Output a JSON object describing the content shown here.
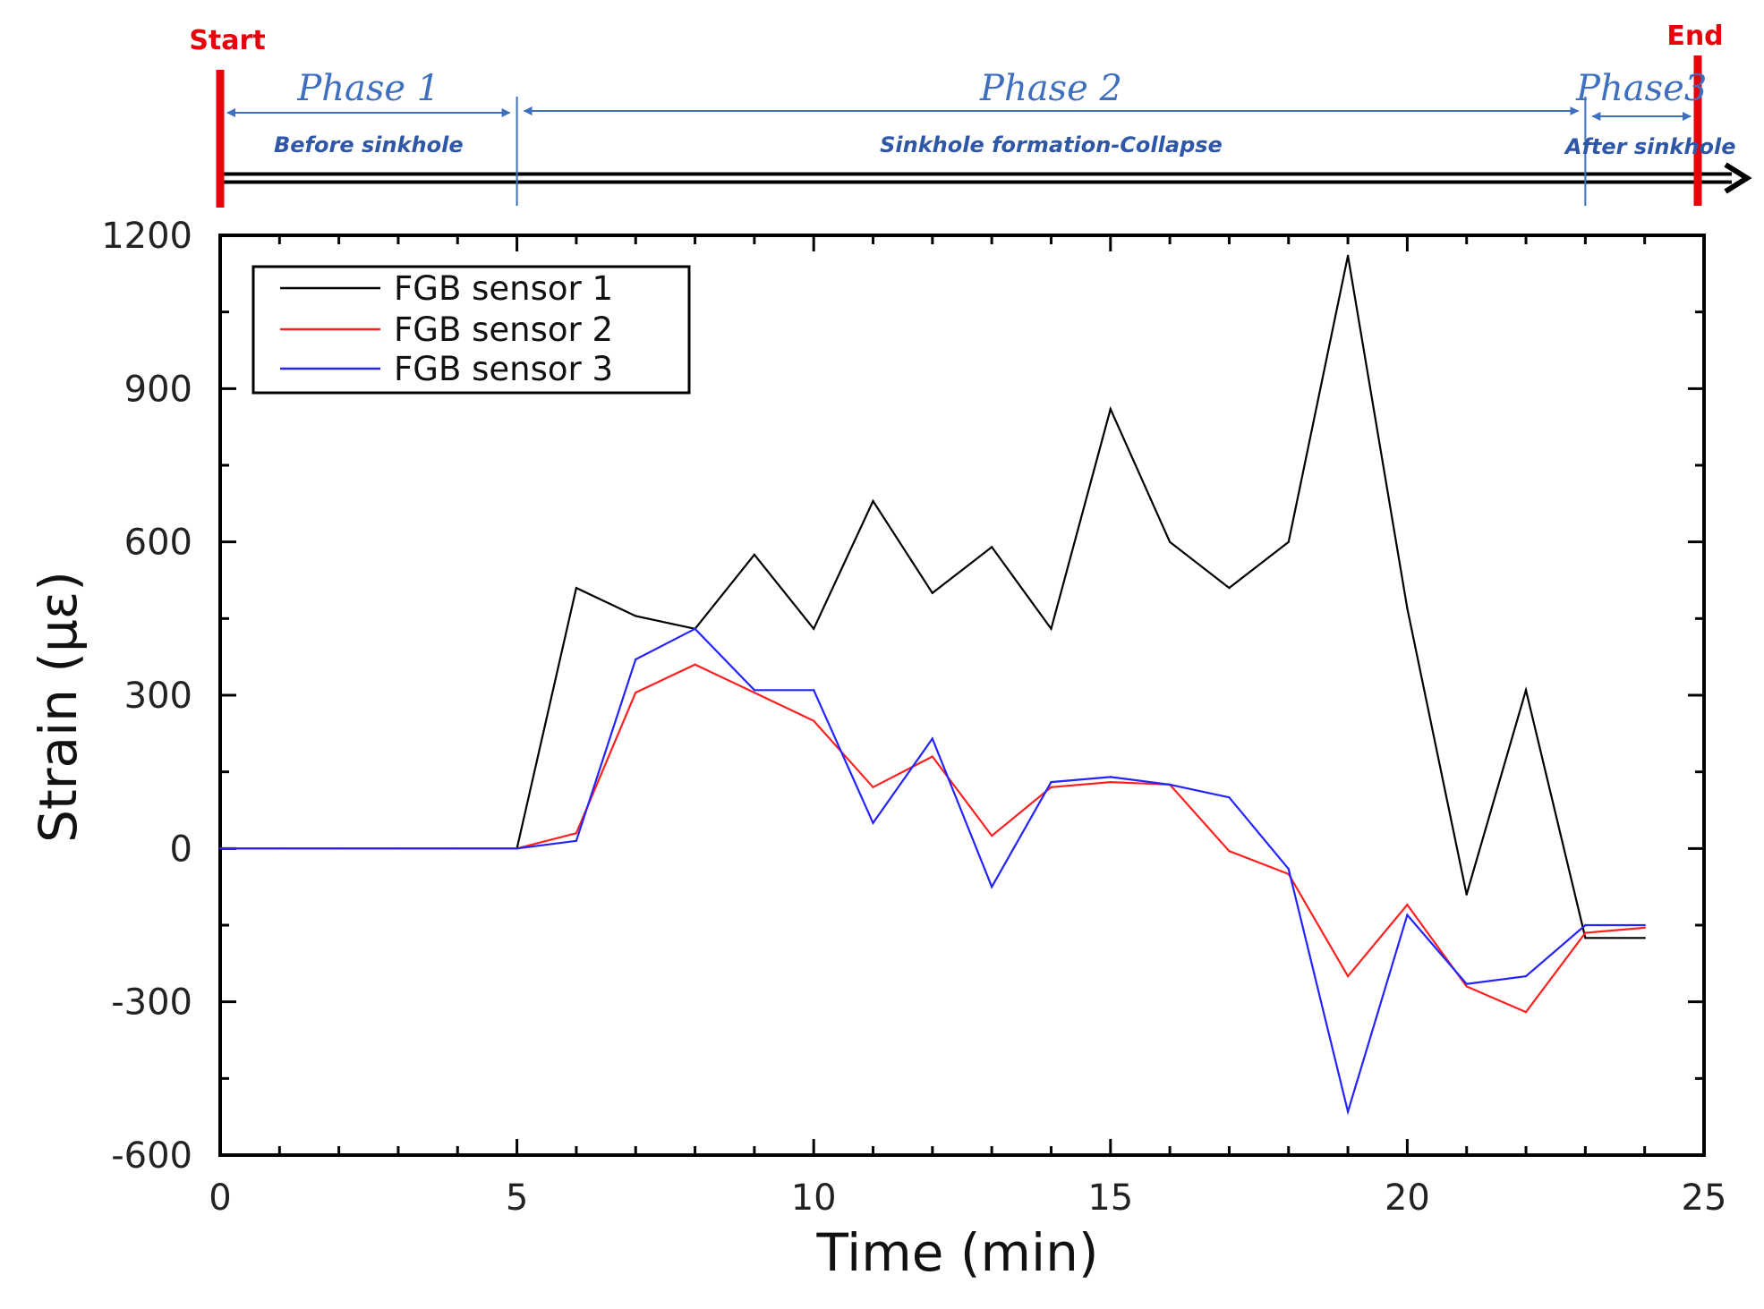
{
  "timeline": {
    "start_label": "Start",
    "end_label": "End",
    "phases": [
      {
        "title": "Phase 1",
        "subtitle": "Before sinkhole",
        "from": 0,
        "to": 5
      },
      {
        "title": "Phase 2",
        "subtitle": "Sinkhole formation-Collapse",
        "from": 5,
        "to": 23
      },
      {
        "title": "Phase3",
        "subtitle": "After sinkhole",
        "from": 23,
        "to": 25
      }
    ],
    "colors": {
      "marker": "#e8000b",
      "phase": "#3f6fbf",
      "arrow": "#000000"
    }
  },
  "chart_data": {
    "type": "line",
    "title": "",
    "xlabel": "Time (min)",
    "ylabel": "Strain (με)",
    "xlim": [
      0,
      25
    ],
    "ylim": [
      -600,
      1200
    ],
    "xticks": [
      0,
      5,
      10,
      15,
      20,
      25
    ],
    "yticks": [
      -600,
      -300,
      0,
      300,
      600,
      900,
      1200
    ],
    "grid": false,
    "legend_position": "top-left",
    "series": [
      {
        "name": "FGB sensor 1",
        "color": "#000000",
        "x": [
          0,
          1,
          2,
          3,
          4,
          5,
          6,
          7,
          8,
          9,
          10,
          11,
          12,
          13,
          14,
          15,
          16,
          17,
          18,
          19,
          20,
          21,
          22,
          23,
          24
        ],
        "y": [
          0,
          0,
          0,
          0,
          0,
          0,
          510,
          455,
          430,
          575,
          430,
          680,
          500,
          590,
          430,
          860,
          600,
          510,
          600,
          1160,
          470,
          -90,
          310,
          -175,
          -175
        ]
      },
      {
        "name": "FGB sensor 2",
        "color": "#ff2020",
        "x": [
          0,
          1,
          2,
          3,
          4,
          5,
          6,
          7,
          8,
          9,
          10,
          11,
          12,
          13,
          14,
          15,
          16,
          17,
          18,
          19,
          20,
          21,
          22,
          23,
          24
        ],
        "y": [
          0,
          0,
          0,
          0,
          0,
          0,
          30,
          305,
          360,
          305,
          250,
          120,
          180,
          25,
          120,
          130,
          125,
          -5,
          -50,
          -250,
          -110,
          -270,
          -320,
          -165,
          -155
        ]
      },
      {
        "name": "FGB sensor 3",
        "color": "#2323ff",
        "x": [
          0,
          1,
          2,
          3,
          4,
          5,
          6,
          7,
          8,
          9,
          10,
          11,
          12,
          13,
          14,
          15,
          16,
          17,
          18,
          19,
          20,
          21,
          22,
          23,
          24
        ],
        "y": [
          0,
          0,
          0,
          0,
          0,
          0,
          15,
          370,
          430,
          310,
          310,
          50,
          215,
          -75,
          130,
          140,
          125,
          100,
          -40,
          -515,
          -130,
          -265,
          -250,
          -150,
          -150
        ]
      }
    ]
  }
}
